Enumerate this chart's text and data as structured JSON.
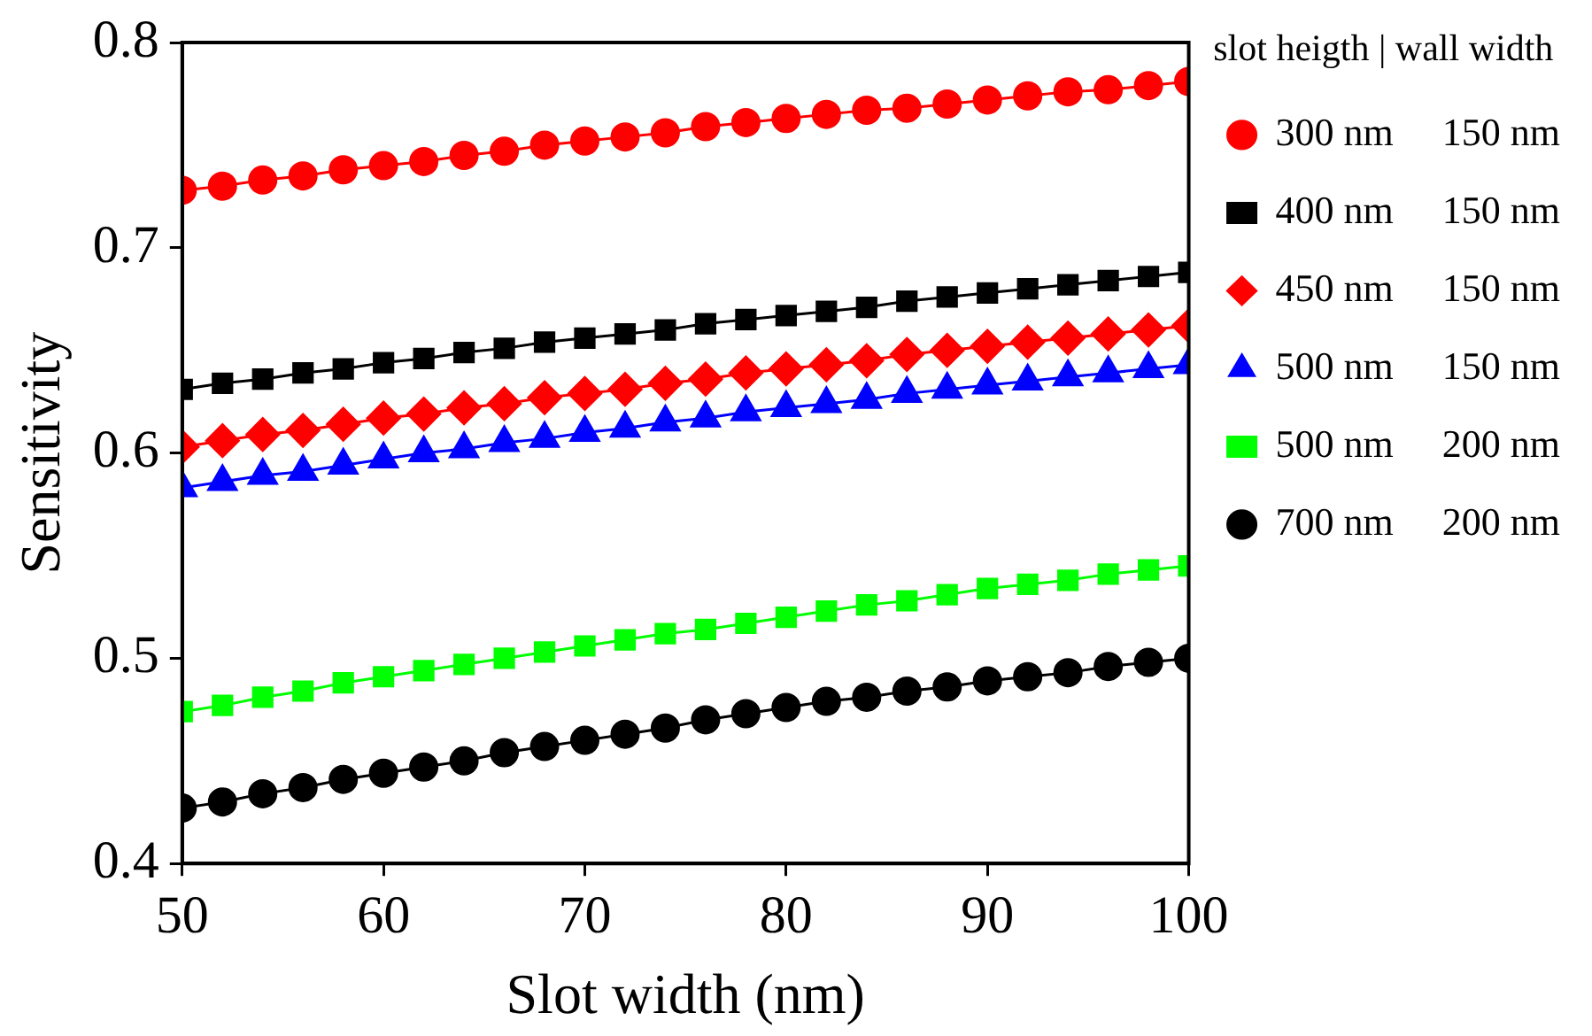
{
  "chart_data": {
    "type": "line",
    "xlabel": "Slot width (nm)",
    "ylabel": "Sensitivity",
    "legend_title": "slot heigth | wall width",
    "legend": "right",
    "grid": false,
    "x": [
      50,
      52,
      54,
      56,
      58,
      60,
      62,
      64,
      66,
      68,
      70,
      72,
      74,
      76,
      78,
      80,
      82,
      84,
      86,
      88,
      90,
      92,
      94,
      96,
      98,
      100
    ],
    "xlim": [
      50,
      100
    ],
    "xticks": [
      50,
      60,
      70,
      80,
      90,
      100
    ],
    "ylim": [
      0.4,
      0.8
    ],
    "yticks": [
      0.4,
      0.5,
      0.6,
      0.7,
      0.8
    ],
    "series": [
      {
        "name": "300 nm     150 nm",
        "color": "#ff0000",
        "marker": "circle",
        "values": [
          0.728,
          0.73,
          0.733,
          0.735,
          0.738,
          0.74,
          0.742,
          0.745,
          0.747,
          0.75,
          0.752,
          0.754,
          0.756,
          0.759,
          0.761,
          0.763,
          0.765,
          0.767,
          0.768,
          0.77,
          0.772,
          0.774,
          0.776,
          0.777,
          0.779,
          0.781
        ]
      },
      {
        "name": "400 nm     150 nm",
        "color": "#000000",
        "marker": "square",
        "values": [
          0.631,
          0.634,
          0.636,
          0.639,
          0.641,
          0.644,
          0.646,
          0.649,
          0.651,
          0.654,
          0.656,
          0.658,
          0.66,
          0.663,
          0.665,
          0.667,
          0.669,
          0.671,
          0.674,
          0.676,
          0.678,
          0.68,
          0.682,
          0.684,
          0.686,
          0.688
        ]
      },
      {
        "name": "450 nm     150 nm",
        "color": "#ff0000",
        "marker": "diamond",
        "values": [
          0.603,
          0.606,
          0.609,
          0.611,
          0.614,
          0.617,
          0.619,
          0.622,
          0.624,
          0.627,
          0.629,
          0.631,
          0.634,
          0.636,
          0.639,
          0.641,
          0.643,
          0.645,
          0.648,
          0.65,
          0.652,
          0.654,
          0.656,
          0.658,
          0.66,
          0.662
        ]
      },
      {
        "name": "500 nm     150 nm",
        "color": "#0000ff",
        "marker": "triangle",
        "values": [
          0.583,
          0.586,
          0.589,
          0.591,
          0.594,
          0.597,
          0.6,
          0.602,
          0.605,
          0.607,
          0.61,
          0.612,
          0.615,
          0.617,
          0.62,
          0.622,
          0.624,
          0.626,
          0.629,
          0.631,
          0.633,
          0.635,
          0.637,
          0.639,
          0.641,
          0.643
        ]
      },
      {
        "name": "500 nm     200 nm",
        "color": "#00ff00",
        "marker": "square",
        "values": [
          0.474,
          0.477,
          0.481,
          0.484,
          0.488,
          0.491,
          0.494,
          0.497,
          0.5,
          0.503,
          0.506,
          0.509,
          0.512,
          0.514,
          0.517,
          0.52,
          0.523,
          0.526,
          0.528,
          0.531,
          0.534,
          0.536,
          0.538,
          0.541,
          0.543,
          0.545
        ]
      },
      {
        "name": "700 nm     200 nm",
        "color": "#000000",
        "marker": "circle",
        "values": [
          0.427,
          0.43,
          0.434,
          0.437,
          0.441,
          0.444,
          0.447,
          0.45,
          0.454,
          0.457,
          0.46,
          0.463,
          0.466,
          0.47,
          0.473,
          0.476,
          0.479,
          0.481,
          0.484,
          0.486,
          0.489,
          0.491,
          0.493,
          0.496,
          0.498,
          0.5
        ]
      }
    ]
  }
}
